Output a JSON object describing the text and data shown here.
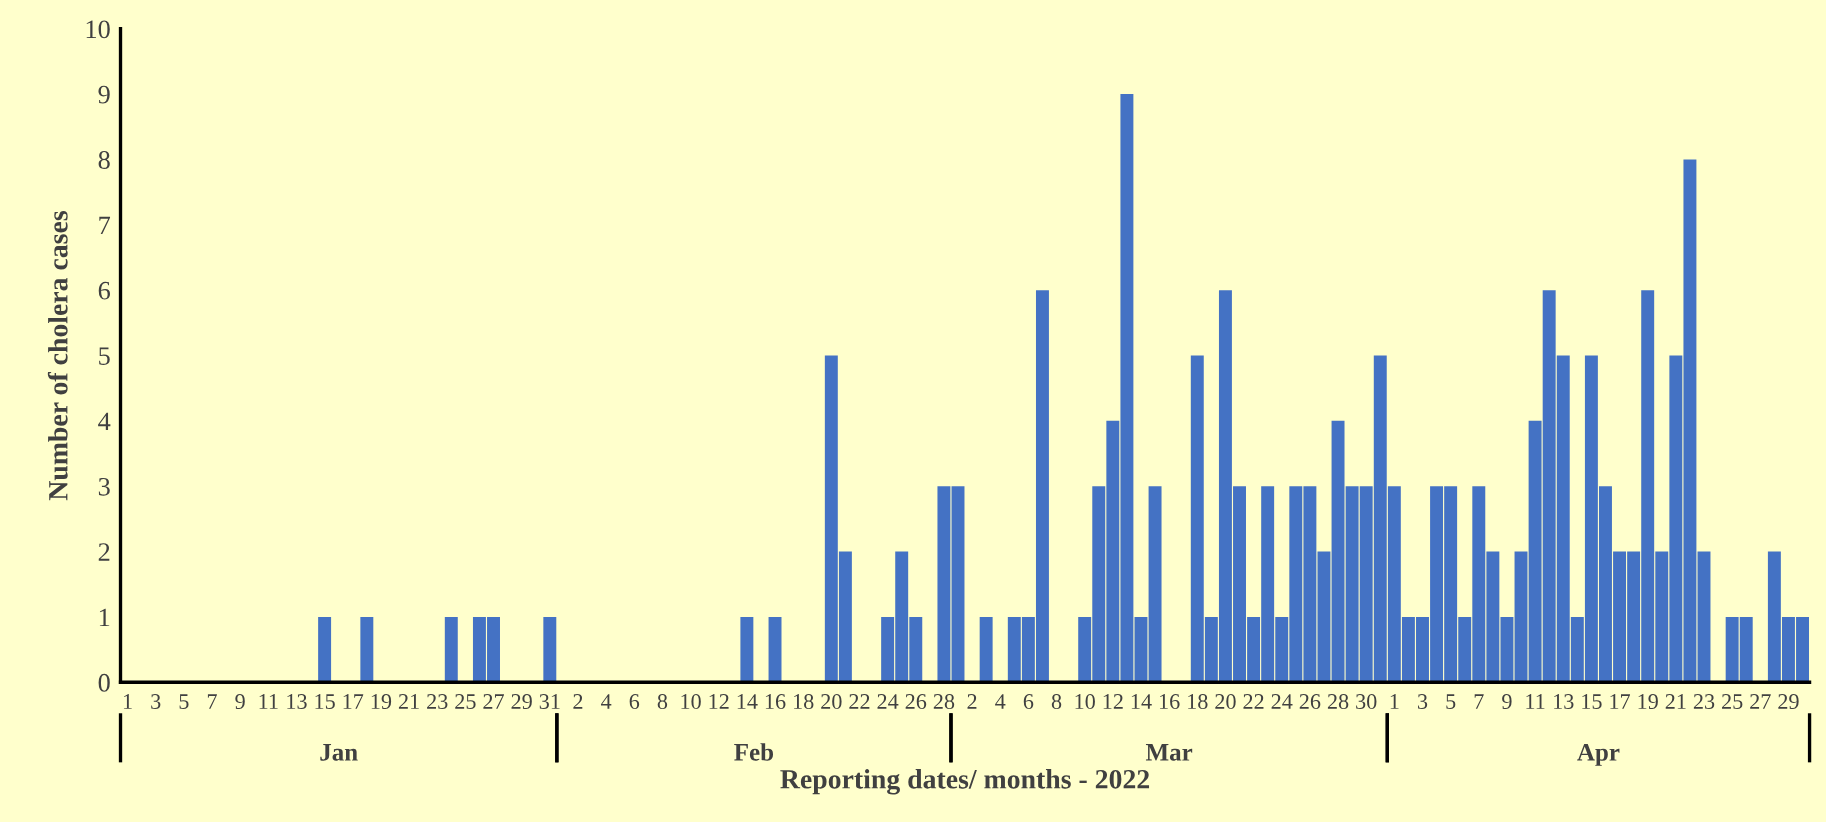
{
  "chart_data": {
    "type": "bar",
    "xlabel": "Reporting dates/ months - 2022",
    "ylabel": "Number of cholera cases",
    "categories": [
      "1",
      null,
      "3",
      null,
      "5",
      null,
      "7",
      null,
      "9",
      null,
      "11",
      null,
      "13",
      null,
      "15",
      null,
      "17",
      null,
      "19",
      null,
      "21",
      null,
      "23",
      null,
      "25",
      null,
      "27",
      null,
      "29",
      null,
      "31",
      null,
      "2",
      null,
      "4",
      null,
      "6",
      null,
      "8",
      null,
      "10",
      null,
      "12",
      null,
      "14",
      null,
      "16",
      null,
      "18",
      null,
      "20",
      null,
      "22",
      null,
      "24",
      null,
      "26",
      null,
      "28",
      null,
      "2",
      null,
      "4",
      null,
      "6",
      null,
      "8",
      null,
      "10",
      null,
      "12",
      null,
      "14",
      null,
      "16",
      null,
      "18",
      null,
      "20",
      null,
      "22",
      null,
      "24",
      null,
      "26",
      null,
      "28",
      null,
      "30",
      null,
      "1",
      null,
      "3",
      null,
      "5",
      null,
      "7",
      null,
      "9",
      null,
      "11",
      null,
      "13",
      null,
      "15",
      null,
      "17",
      null,
      "19",
      null,
      "21",
      null,
      "23",
      null,
      "25",
      null,
      "27",
      null,
      "29",
      null
    ],
    "values": [
      0,
      0,
      0,
      0,
      0,
      0,
      0,
      0,
      0,
      0,
      0,
      0,
      0,
      0,
      1,
      0,
      0,
      1,
      0,
      0,
      0,
      0,
      0,
      1,
      0,
      1,
      1,
      0,
      0,
      0,
      1,
      0,
      0,
      0,
      0,
      0,
      0,
      0,
      0,
      0,
      0,
      0,
      0,
      0,
      1,
      0,
      1,
      0,
      0,
      0,
      5,
      2,
      0,
      0,
      1,
      2,
      1,
      0,
      3,
      3,
      0,
      1,
      0,
      1,
      1,
      6,
      0,
      0,
      1,
      3,
      4,
      9,
      1,
      3,
      0,
      0,
      5,
      1,
      6,
      3,
      1,
      3,
      1,
      3,
      3,
      2,
      4,
      3,
      3,
      5,
      3,
      1,
      1,
      3,
      3,
      1,
      3,
      2,
      1,
      2,
      4,
      6,
      5,
      1,
      5,
      3,
      2,
      2,
      6,
      2,
      5,
      8,
      2,
      0,
      1,
      1,
      0,
      2,
      1,
      1
    ],
    "color": "#4472c4",
    "annotations": [
      "Jan",
      "Feb",
      "Mar",
      "Apr"
    ],
    "ylim": [
      0,
      10
    ],
    "yticks": [
      0,
      1,
      2,
      3,
      4,
      5,
      6,
      7,
      8,
      9,
      10
    ],
    "grid": false,
    "legend": false
  }
}
